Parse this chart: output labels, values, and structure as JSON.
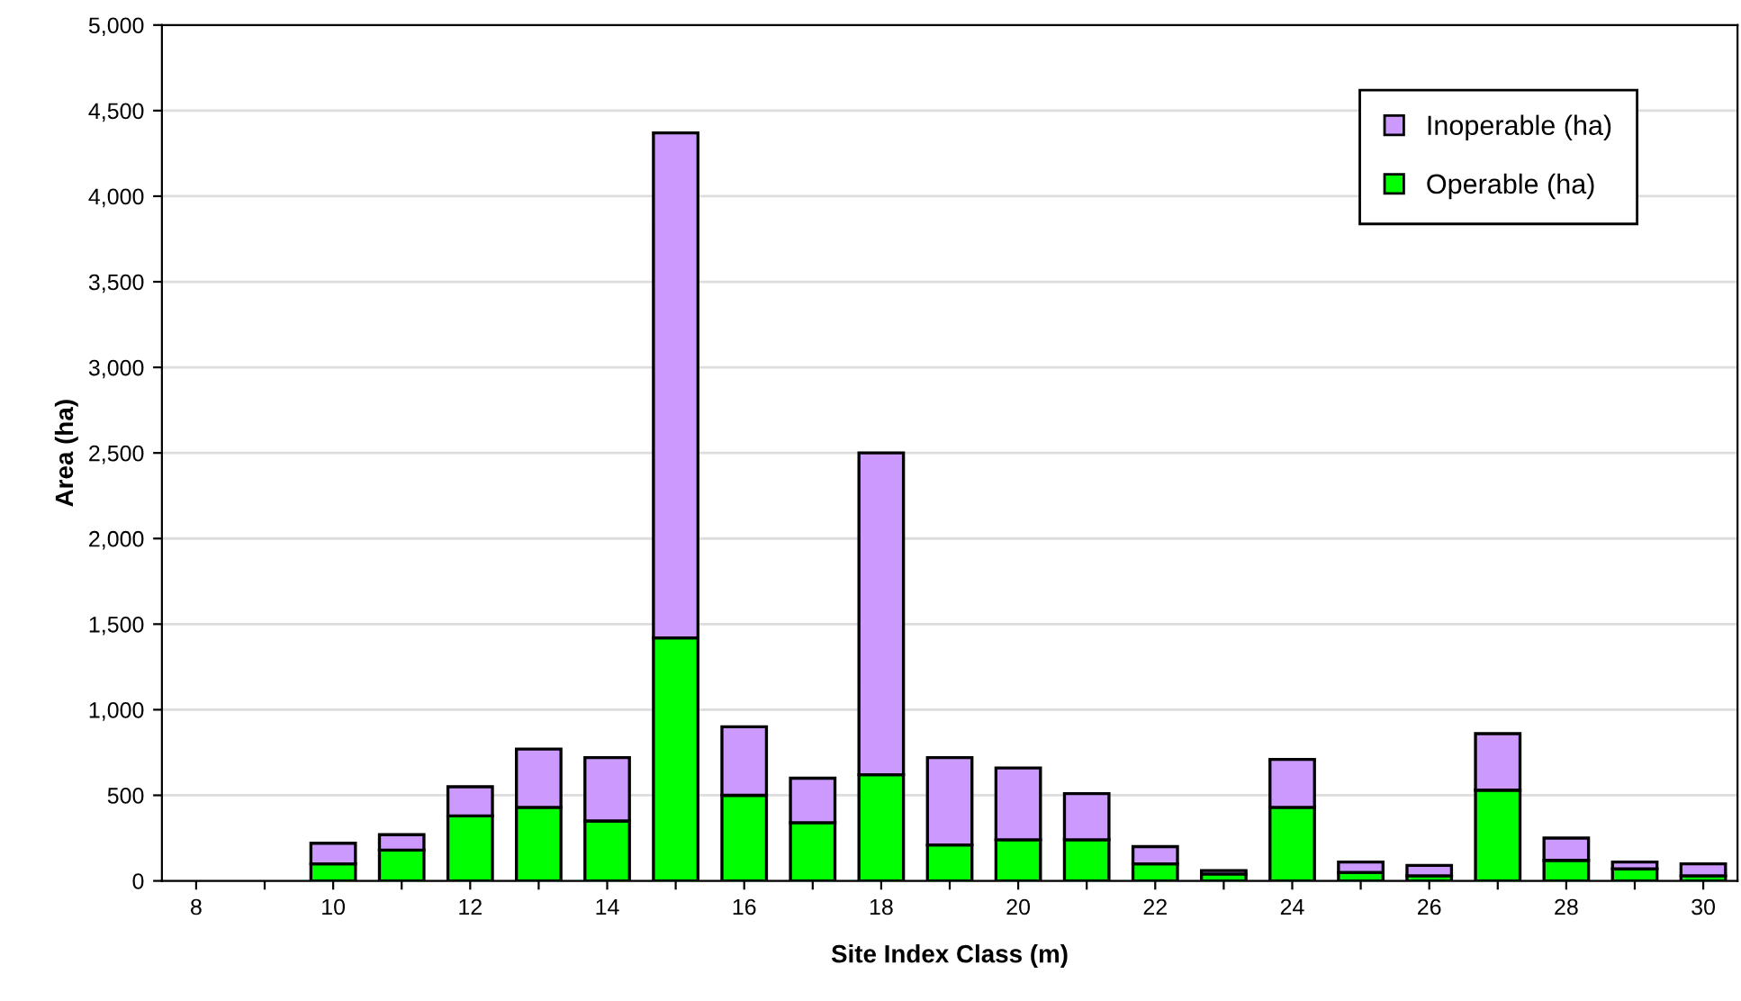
{
  "chart_data": {
    "type": "bar",
    "stacked": true,
    "xlabel": "Site Index Class (m)",
    "ylabel": "Area (ha)",
    "categories": [
      "8",
      null,
      "10",
      null,
      "12",
      null,
      "14",
      null,
      "16",
      null,
      "18",
      null,
      "20",
      null,
      "22",
      null,
      "24",
      null,
      "26",
      null,
      "28",
      null,
      "30"
    ],
    "series": [
      {
        "name": "Operable (ha)",
        "color": "#00ff00",
        "values": [
          null,
          null,
          100,
          180,
          380,
          430,
          350,
          1420,
          500,
          340,
          620,
          210,
          240,
          240,
          100,
          40,
          430,
          50,
          30,
          530,
          120,
          70,
          30
        ]
      },
      {
        "name": "Inoperable (ha)",
        "color": "#cc99ff",
        "values": [
          null,
          null,
          120,
          90,
          170,
          340,
          370,
          2950,
          400,
          260,
          1880,
          510,
          420,
          270,
          100,
          20,
          280,
          60,
          60,
          330,
          130,
          40,
          70
        ]
      }
    ],
    "ylim": [
      0,
      5000
    ],
    "yticks": [
      {
        "value": 0,
        "label": "0"
      },
      {
        "value": 500,
        "label": "500"
      },
      {
        "value": 1000,
        "label": "1,000"
      },
      {
        "value": 1500,
        "label": "1,500"
      },
      {
        "value": 2000,
        "label": "2,000"
      },
      {
        "value": 2500,
        "label": "2,500"
      },
      {
        "value": 3000,
        "label": "3,000"
      },
      {
        "value": 3500,
        "label": "3,500"
      },
      {
        "value": 4000,
        "label": "4,000"
      },
      {
        "value": 4500,
        "label": "4,500"
      },
      {
        "value": 5000,
        "label": "5,000"
      }
    ],
    "grid": "y",
    "legend": "top right"
  }
}
